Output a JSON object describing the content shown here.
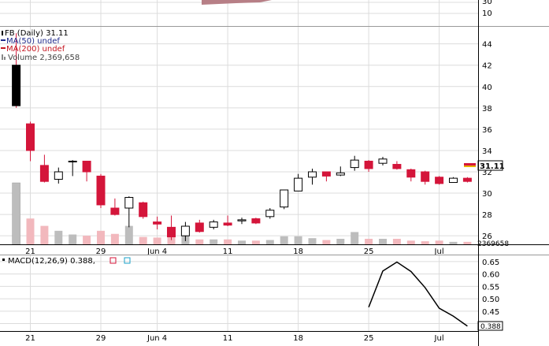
{
  "chart_data": [
    {
      "type": "line",
      "panel": "indicator-top",
      "y_ticks": [
        "30",
        "10"
      ],
      "visible_portion": "partial, cut off at top"
    },
    {
      "type": "candlestick",
      "panel": "price",
      "legend": {
        "symbol_line": "FB (Daily) 31.11",
        "ma50_line": "MA(50) undef",
        "ma200_line": "MA(200) undef",
        "volume_line": "Volume 2,369,658"
      },
      "last_price_label": "31.11",
      "volume_axis_label": "2369658",
      "y_ticks": [
        26,
        28,
        30,
        32,
        34,
        36,
        38,
        40,
        42,
        44
      ],
      "ylim": [
        25.2,
        45.6
      ],
      "x_tick_labels": [
        "21",
        "29",
        "Jun 4",
        "11",
        "18",
        "25",
        "Jul"
      ],
      "x_tick_days": [
        0,
        5,
        9,
        14,
        19,
        24,
        29
      ],
      "candles": [
        {
          "day": -1,
          "o": 42.0,
          "h": 45.0,
          "l": 38.0,
          "c": 38.2
        },
        {
          "day": 0,
          "o": 36.5,
          "h": 36.7,
          "l": 33.0,
          "c": 34.0
        },
        {
          "day": 1,
          "o": 32.6,
          "h": 33.6,
          "l": 31.0,
          "c": 31.1
        },
        {
          "day": 2,
          "o": 31.3,
          "h": 32.4,
          "l": 30.9,
          "c": 32.0
        },
        {
          "day": 3,
          "o": 33.0,
          "h": 33.1,
          "l": 31.6,
          "c": 33.0
        },
        {
          "day": 4,
          "o": 33.0,
          "h": 33.0,
          "l": 31.1,
          "c": 32.0
        },
        {
          "day": 5,
          "o": 31.6,
          "h": 31.8,
          "l": 28.6,
          "c": 28.9
        },
        {
          "day": 6,
          "o": 28.6,
          "h": 29.5,
          "l": 27.9,
          "c": 28.0
        },
        {
          "day": 7,
          "o": 28.6,
          "h": 29.7,
          "l": 26.8,
          "c": 29.6
        },
        {
          "day": 8,
          "o": 29.1,
          "h": 29.2,
          "l": 27.6,
          "c": 27.8
        },
        {
          "day": 9,
          "o": 27.3,
          "h": 27.8,
          "l": 26.6,
          "c": 27.1
        },
        {
          "day": 10,
          "o": 26.8,
          "h": 27.9,
          "l": 25.6,
          "c": 25.9
        },
        {
          "day": 11,
          "o": 26.0,
          "h": 27.3,
          "l": 25.5,
          "c": 26.9
        },
        {
          "day": 12,
          "o": 27.2,
          "h": 27.5,
          "l": 26.3,
          "c": 26.4
        },
        {
          "day": 13,
          "o": 26.8,
          "h": 27.5,
          "l": 26.6,
          "c": 27.3
        },
        {
          "day": 14,
          "o": 27.2,
          "h": 27.9,
          "l": 26.9,
          "c": 27.0
        },
        {
          "day": 15,
          "o": 27.4,
          "h": 27.7,
          "l": 27.1,
          "c": 27.5
        },
        {
          "day": 16,
          "o": 27.6,
          "h": 27.7,
          "l": 27.1,
          "c": 27.2
        },
        {
          "day": 17,
          "o": 27.8,
          "h": 28.6,
          "l": 27.6,
          "c": 28.4
        },
        {
          "day": 18,
          "o": 28.7,
          "h": 30.3,
          "l": 28.5,
          "c": 30.3
        },
        {
          "day": 19,
          "o": 30.2,
          "h": 31.8,
          "l": 30.2,
          "c": 31.4
        },
        {
          "day": 20,
          "o": 31.5,
          "h": 32.3,
          "l": 30.8,
          "c": 32.0
        },
        {
          "day": 21,
          "o": 32.0,
          "h": 32.0,
          "l": 31.1,
          "c": 31.6
        },
        {
          "day": 22,
          "o": 31.7,
          "h": 32.5,
          "l": 31.6,
          "c": 31.9
        },
        {
          "day": 23,
          "o": 32.4,
          "h": 33.5,
          "l": 32.1,
          "c": 33.1
        },
        {
          "day": 24,
          "o": 33.0,
          "h": 33.1,
          "l": 32.0,
          "c": 32.3
        },
        {
          "day": 25,
          "o": 32.8,
          "h": 33.4,
          "l": 32.6,
          "c": 33.2
        },
        {
          "day": 26,
          "o": 32.7,
          "h": 33.0,
          "l": 32.2,
          "c": 32.3
        },
        {
          "day": 27,
          "o": 32.2,
          "h": 32.3,
          "l": 31.1,
          "c": 31.5
        },
        {
          "day": 28,
          "o": 32.0,
          "h": 32.1,
          "l": 30.8,
          "c": 31.1
        },
        {
          "day": 29,
          "o": 31.5,
          "h": 31.6,
          "l": 30.8,
          "c": 30.9
        },
        {
          "day": 30,
          "o": 31.0,
          "h": 31.5,
          "l": 31.0,
          "c": 31.4
        },
        {
          "day": 31,
          "o": 31.4,
          "h": 31.5,
          "l": 31.0,
          "c": 31.1
        }
      ],
      "volume_bars": [
        {
          "day": 0,
          "rel": 0.42
        },
        {
          "day": 1,
          "rel": 0.3
        },
        {
          "day": 2,
          "rel": 0.22
        },
        {
          "day": 3,
          "rel": 0.16
        },
        {
          "day": 4,
          "rel": 0.14
        },
        {
          "day": 5,
          "rel": 0.22
        },
        {
          "day": 6,
          "rel": 0.17
        },
        {
          "day": 7,
          "rel": 0.3
        },
        {
          "day": 8,
          "rel": 0.12
        },
        {
          "day": 9,
          "rel": 0.11
        },
        {
          "day": 10,
          "rel": 0.14
        },
        {
          "day": 11,
          "rel": 0.17
        },
        {
          "day": 12,
          "rel": 0.08
        },
        {
          "day": 13,
          "rel": 0.08
        },
        {
          "day": 14,
          "rel": 0.08
        },
        {
          "day": 15,
          "rel": 0.06
        },
        {
          "day": 16,
          "rel": 0.06
        },
        {
          "day": 17,
          "rel": 0.07
        },
        {
          "day": 18,
          "rel": 0.13
        },
        {
          "day": 19,
          "rel": 0.13
        },
        {
          "day": 20,
          "rel": 0.1
        },
        {
          "day": 21,
          "rel": 0.07
        },
        {
          "day": 22,
          "rel": 0.09
        },
        {
          "day": 23,
          "rel": 0.2
        },
        {
          "day": 24,
          "rel": 0.09
        },
        {
          "day": 25,
          "rel": 0.09
        },
        {
          "day": 26,
          "rel": 0.09
        },
        {
          "day": 27,
          "rel": 0.06
        },
        {
          "day": 28,
          "rel": 0.05
        },
        {
          "day": 29,
          "rel": 0.06
        },
        {
          "day": 30,
          "rel": 0.04
        },
        {
          "day": 31,
          "rel": 0.04
        }
      ],
      "volume_tall_bar": {
        "day": -1,
        "rel": 1.0
      }
    },
    {
      "type": "line",
      "panel": "macd",
      "legend": "MACD(12,26,9) 0.388,",
      "last_value_label": "0.388",
      "y_ticks": [
        0.65,
        0.6,
        0.55,
        0.5,
        0.45,
        0.4
      ],
      "ylim": [
        0.37,
        0.675
      ],
      "x_tick_labels": [
        "21",
        "29",
        "Jun 4",
        "11",
        "18",
        "25",
        "Jul"
      ],
      "x_tick_days": [
        0,
        5,
        9,
        14,
        19,
        24,
        29
      ],
      "days": [
        24,
        25,
        26,
        27,
        28,
        29,
        30,
        31
      ],
      "values": [
        0.466,
        0.612,
        0.648,
        0.61,
        0.545,
        0.462,
        0.43,
        0.39
      ]
    }
  ],
  "colors": {
    "down_candle": "#d4153a",
    "up_candle": "#ffffff",
    "outline": "#000000",
    "grid": "#dcdcdc",
    "ma50": "#1f2a8c",
    "ma200": "#c4141e",
    "volume_up": "#bdbdbd",
    "volume_down": "#f2b8bd"
  }
}
